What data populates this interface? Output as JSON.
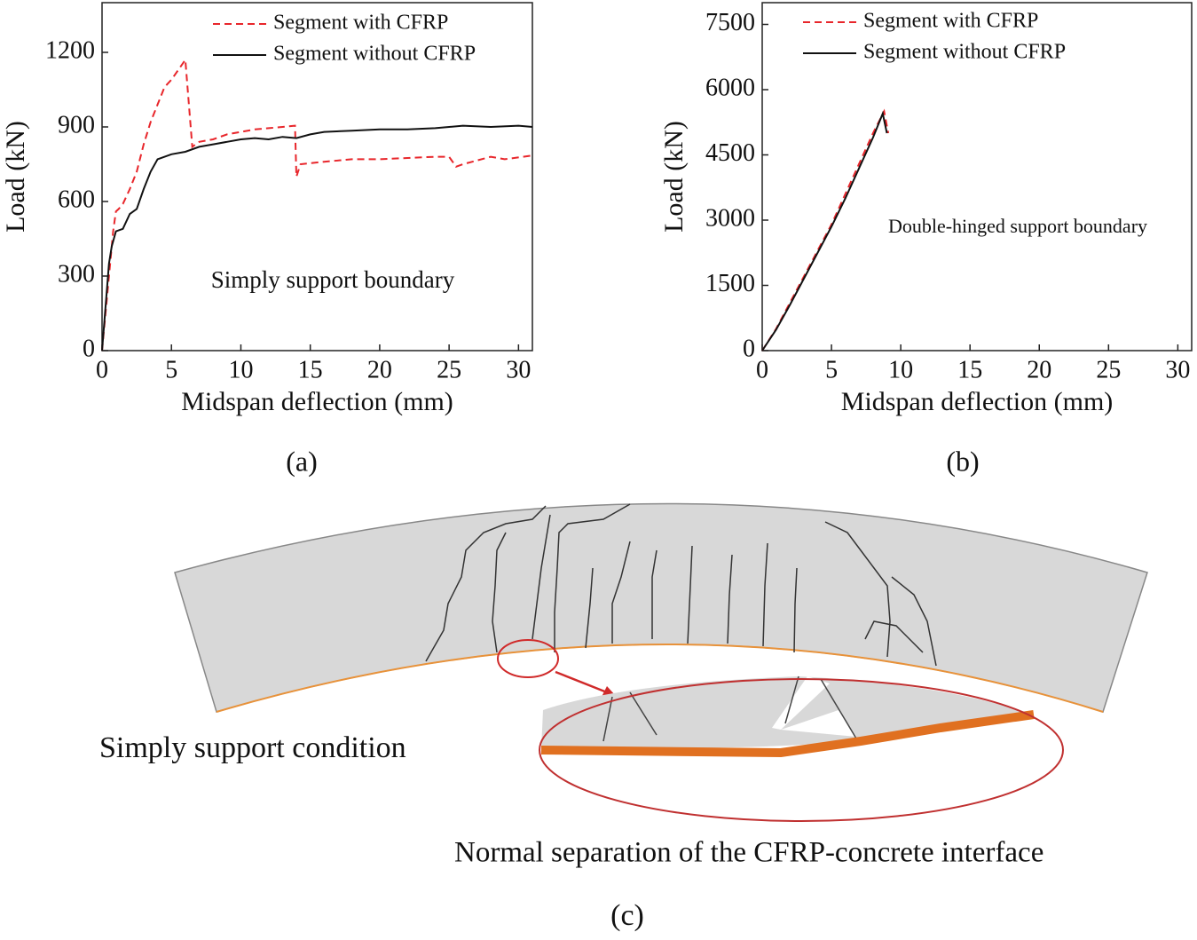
{
  "chart_data": [
    {
      "type": "line",
      "panel_label": "(a)",
      "xlabel": "Midspan deflection (mm)",
      "ylabel": "Load (kN)",
      "annotation": "Simply support boundary",
      "xlim": [
        0,
        31
      ],
      "ylim": [
        0,
        1400
      ],
      "xticks": [
        0,
        5,
        10,
        15,
        20,
        25,
        30
      ],
      "yticks": [
        0,
        300,
        600,
        900,
        1200
      ],
      "legend": "upper right",
      "series": [
        {
          "name": "Segment with CFRP",
          "color": "#e8262b",
          "style": "dashed",
          "x": [
            0,
            0.5,
            0.8,
            1,
            1.2,
            1.5,
            2,
            2.5,
            3,
            3.5,
            4,
            4.5,
            5,
            5.5,
            6,
            6.5,
            7,
            8,
            9,
            10,
            11,
            12,
            13,
            13.9,
            14,
            14.3,
            16,
            18,
            20,
            22,
            24,
            25,
            25.5,
            26,
            28,
            29,
            31
          ],
          "values": [
            0,
            300,
            480,
            560,
            570,
            590,
            650,
            720,
            830,
            920,
            990,
            1060,
            1090,
            1130,
            1170,
            820,
            840,
            850,
            870,
            880,
            890,
            895,
            900,
            905,
            700,
            750,
            760,
            770,
            770,
            775,
            780,
            780,
            740,
            750,
            780,
            770,
            785
          ]
        },
        {
          "name": "Segment without CFRP",
          "color": "#111111",
          "style": "solid",
          "x": [
            0,
            0.5,
            0.7,
            1,
            1.5,
            2,
            2.5,
            3,
            3.5,
            4,
            5,
            6,
            7,
            8,
            9,
            10,
            11,
            12,
            13,
            14,
            15,
            16,
            18,
            20,
            22,
            24,
            26,
            28,
            30,
            31
          ],
          "values": [
            0,
            350,
            420,
            480,
            490,
            550,
            570,
            650,
            720,
            770,
            790,
            800,
            820,
            830,
            840,
            850,
            855,
            850,
            860,
            855,
            870,
            880,
            885,
            890,
            890,
            895,
            905,
            900,
            905,
            900
          ]
        }
      ]
    },
    {
      "type": "line",
      "panel_label": "(b)",
      "xlabel": "Midspan deflection (mm)",
      "ylabel": "Load (kN)",
      "annotation": "Double-hinged support boundary",
      "xlim": [
        0,
        31
      ],
      "ylim": [
        0,
        8000
      ],
      "xticks": [
        0,
        5,
        10,
        15,
        20,
        25,
        30
      ],
      "yticks": [
        0,
        1500,
        3000,
        4500,
        6000,
        7500
      ],
      "legend": "upper right",
      "series": [
        {
          "name": "Segment with CFRP",
          "color": "#e8262b",
          "style": "dashed",
          "x": [
            0,
            1,
            2,
            3,
            4,
            5,
            6,
            7,
            8,
            8.8,
            9.1
          ],
          "values": [
            0,
            500,
            1100,
            1700,
            2300,
            2900,
            3600,
            4300,
            5000,
            5500,
            5000
          ]
        },
        {
          "name": "Segment without  CFRP",
          "color": "#111111",
          "style": "solid",
          "x": [
            0,
            1,
            2,
            3,
            4,
            5,
            6,
            7,
            8,
            8.7,
            9
          ],
          "values": [
            0,
            480,
            1050,
            1650,
            2250,
            2850,
            3500,
            4200,
            4900,
            5450,
            5000
          ]
        }
      ]
    }
  ],
  "diagram": {
    "panel_label": "(c)",
    "condition": "Simply support condition",
    "caption": "Normal separation of the CFRP-concrete interface"
  }
}
